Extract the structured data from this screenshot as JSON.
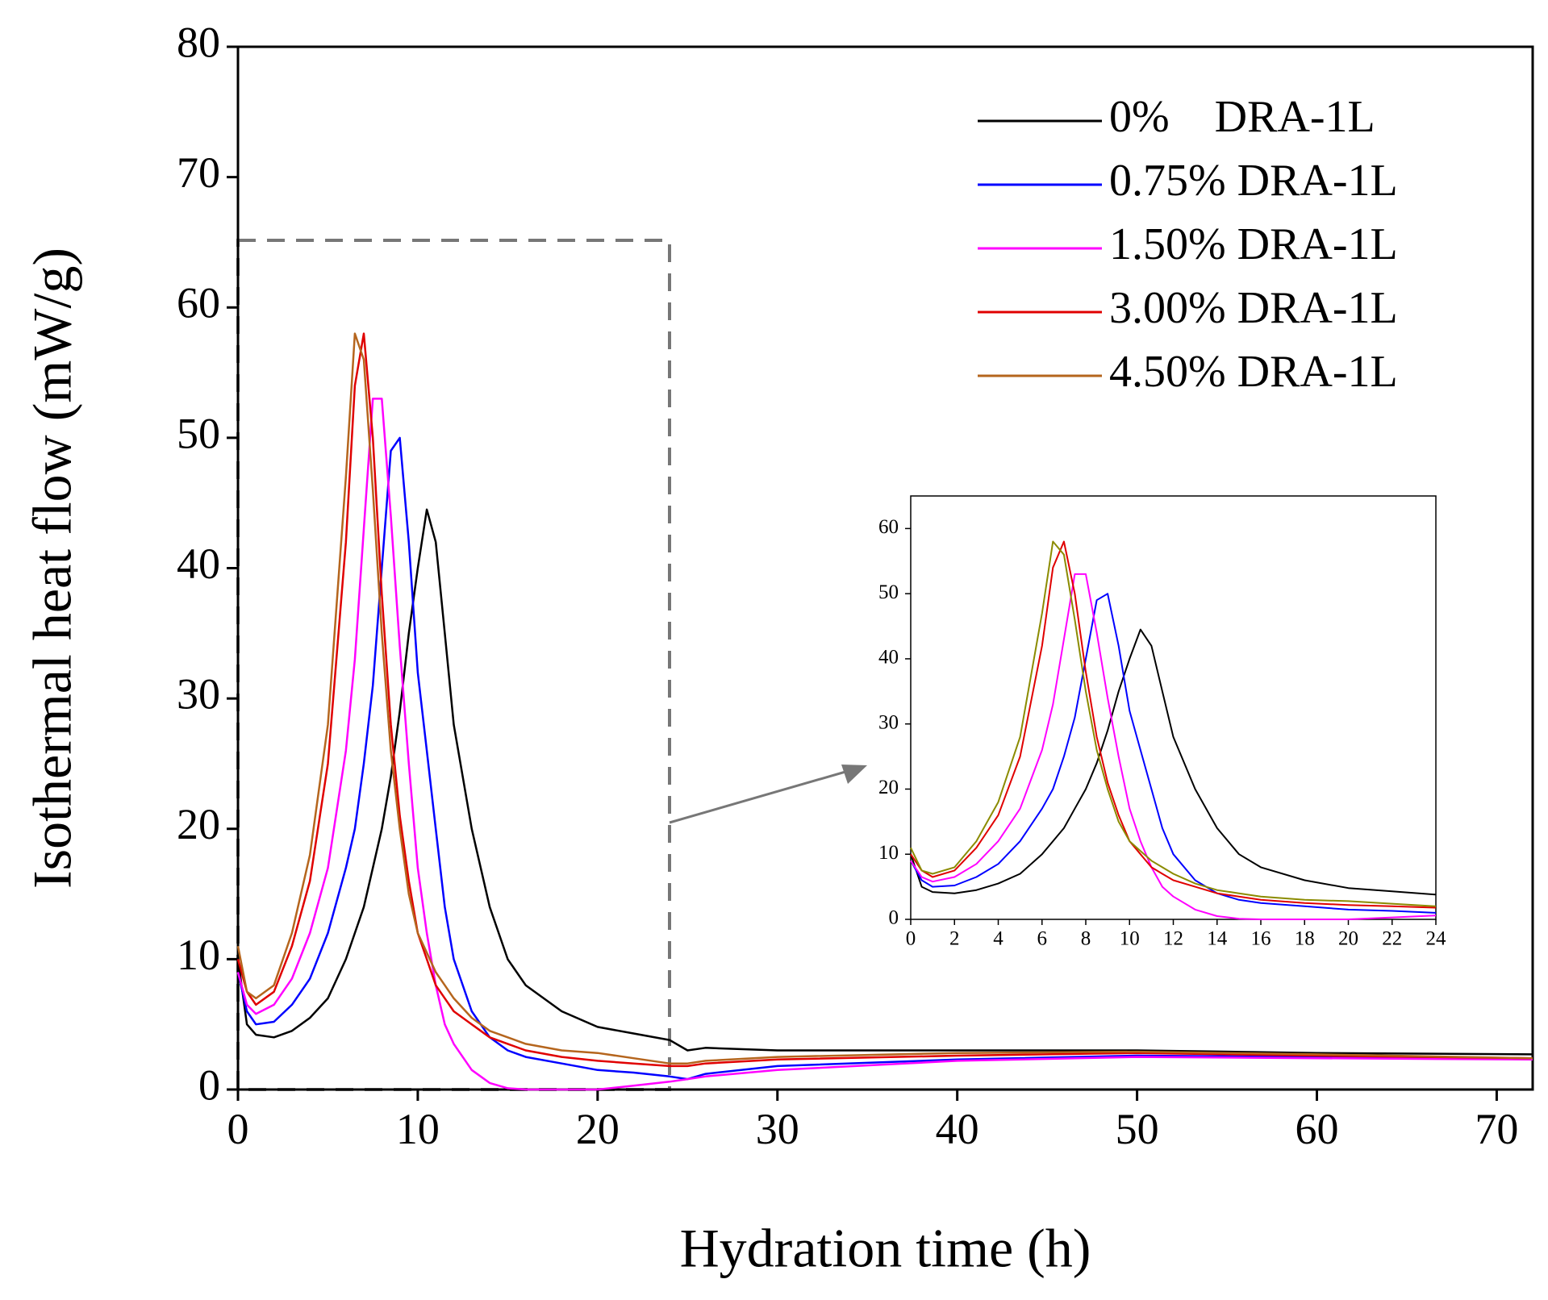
{
  "chart_data": [
    {
      "type": "line",
      "x_label": "Hydration time (h)",
      "y_label": "Isothermal heat flow (mW/g)",
      "x": [
        0,
        0.5,
        1,
        2,
        3,
        4,
        5,
        6,
        6.5,
        7,
        7.5,
        8,
        8.5,
        9,
        9.5,
        10,
        10.5,
        11,
        11.5,
        12,
        13,
        14,
        15,
        16,
        18,
        20,
        22,
        24,
        25,
        26,
        30,
        40,
        50,
        60,
        72
      ],
      "xlim": [
        0,
        72
      ],
      "xticks": [
        0,
        10,
        20,
        30,
        40,
        50,
        60,
        70
      ],
      "ylim": [
        0,
        80
      ],
      "yticks": [
        0,
        10,
        20,
        30,
        40,
        50,
        60,
        70,
        80
      ],
      "legend": "upper right",
      "series": [
        {
          "name": "0%    DRA-1L",
          "color": "#000000",
          "values": [
            10,
            5,
            4.2,
            4,
            4.5,
            5.5,
            7,
            10,
            12,
            14,
            17,
            20,
            24,
            29,
            35,
            40,
            44.5,
            42,
            35,
            28,
            20,
            14,
            10,
            8,
            6,
            4.8,
            4.3,
            3.8,
            3,
            3.2,
            3,
            3,
            3,
            2.8,
            2.7
          ]
        },
        {
          "name": "0.75% DRA-1L",
          "color": "#0000ff",
          "values": [
            9,
            6,
            5,
            5.2,
            6.5,
            8.5,
            12,
            17,
            20,
            25,
            31,
            40,
            49,
            50,
            42,
            32,
            26,
            20,
            14,
            10,
            6,
            4,
            3,
            2.5,
            2,
            1.5,
            1.3,
            1,
            0.8,
            1.2,
            1.8,
            2.3,
            2.6,
            2.5,
            2.4
          ]
        },
        {
          "name": "1.50% DRA-1L",
          "color": "#ff00ff",
          "values": [
            9,
            6.5,
            5.8,
            6.5,
            8.5,
            12,
            17,
            26,
            33,
            43,
            53,
            53,
            44,
            34,
            25,
            17,
            12,
            8,
            5,
            3.5,
            1.5,
            0.5,
            0.1,
            0,
            0,
            0,
            0.3,
            0.6,
            0.8,
            1,
            1.5,
            2.2,
            2.5,
            2.4,
            2.3
          ]
        },
        {
          "name": "3.00% DRA-1L",
          "color": "#e00000",
          "values": [
            10,
            7.5,
            6.5,
            7.5,
            11,
            16,
            25,
            42,
            54,
            58,
            50,
            38,
            28,
            21,
            16,
            12,
            10,
            8,
            7,
            6,
            5,
            4,
            3.5,
            3,
            2.5,
            2.2,
            2,
            1.8,
            1.8,
            2,
            2.3,
            2.6,
            2.8,
            2.6,
            2.4
          ]
        },
        {
          "name": "4.50% DRA-1L",
          "color": "#b5651d",
          "values": [
            11,
            7.5,
            7,
            8,
            12,
            18,
            28,
            47,
            58,
            56,
            46,
            35,
            26,
            20,
            15,
            12,
            10.5,
            9,
            8,
            7,
            5.5,
            4.5,
            4,
            3.5,
            3,
            2.8,
            2.4,
            2,
            2,
            2.2,
            2.5,
            2.8,
            2.9,
            2.7,
            2.4
          ]
        }
      ]
    },
    {
      "type": "line",
      "x": [
        0,
        0.5,
        1,
        2,
        3,
        4,
        5,
        6,
        6.5,
        7,
        7.5,
        8,
        8.5,
        9,
        9.5,
        10,
        10.5,
        11,
        11.5,
        12,
        13,
        14,
        15,
        16,
        18,
        20,
        22,
        24
      ],
      "xlim": [
        0,
        24
      ],
      "xticks": [
        0,
        2,
        4,
        6,
        8,
        10,
        12,
        14,
        16,
        18,
        20,
        22,
        24
      ],
      "ylim": [
        0,
        65
      ],
      "yticks": [
        0,
        10,
        20,
        30,
        40,
        50,
        60
      ],
      "series": [
        {
          "color": "#000000",
          "values": [
            10,
            5,
            4.2,
            4,
            4.5,
            5.5,
            7,
            10,
            12,
            14,
            17,
            20,
            24,
            29,
            35,
            40,
            44.5,
            42,
            35,
            28,
            20,
            14,
            10,
            8,
            6,
            4.8,
            4.3,
            3.8
          ]
        },
        {
          "color": "#0000ff",
          "values": [
            9,
            6,
            5,
            5.2,
            6.5,
            8.5,
            12,
            17,
            20,
            25,
            31,
            40,
            49,
            50,
            42,
            32,
            26,
            20,
            14,
            10,
            6,
            4,
            3,
            2.5,
            2,
            1.5,
            1.3,
            1
          ]
        },
        {
          "color": "#ff00ff",
          "values": [
            9,
            6.5,
            5.8,
            6.5,
            8.5,
            12,
            17,
            26,
            33,
            43,
            53,
            53,
            44,
            34,
            25,
            17,
            12,
            8,
            5,
            3.5,
            1.5,
            0.5,
            0.1,
            0,
            0,
            0,
            0.3,
            0.6
          ]
        },
        {
          "color": "#e00000",
          "values": [
            10,
            7.5,
            6.5,
            7.5,
            11,
            16,
            25,
            42,
            54,
            58,
            50,
            38,
            28,
            21,
            16,
            12,
            10,
            8,
            7,
            6,
            5,
            4,
            3.5,
            3,
            2.5,
            2.2,
            2,
            1.8
          ]
        },
        {
          "color": "#8b8b00",
          "values": [
            11,
            7.5,
            7,
            8,
            12,
            18,
            28,
            47,
            58,
            56,
            46,
            35,
            26,
            20,
            15,
            12,
            10.5,
            9,
            8,
            7,
            5.5,
            4.5,
            4,
            3.5,
            3,
            2.8,
            2.4,
            2
          ]
        }
      ]
    }
  ]
}
